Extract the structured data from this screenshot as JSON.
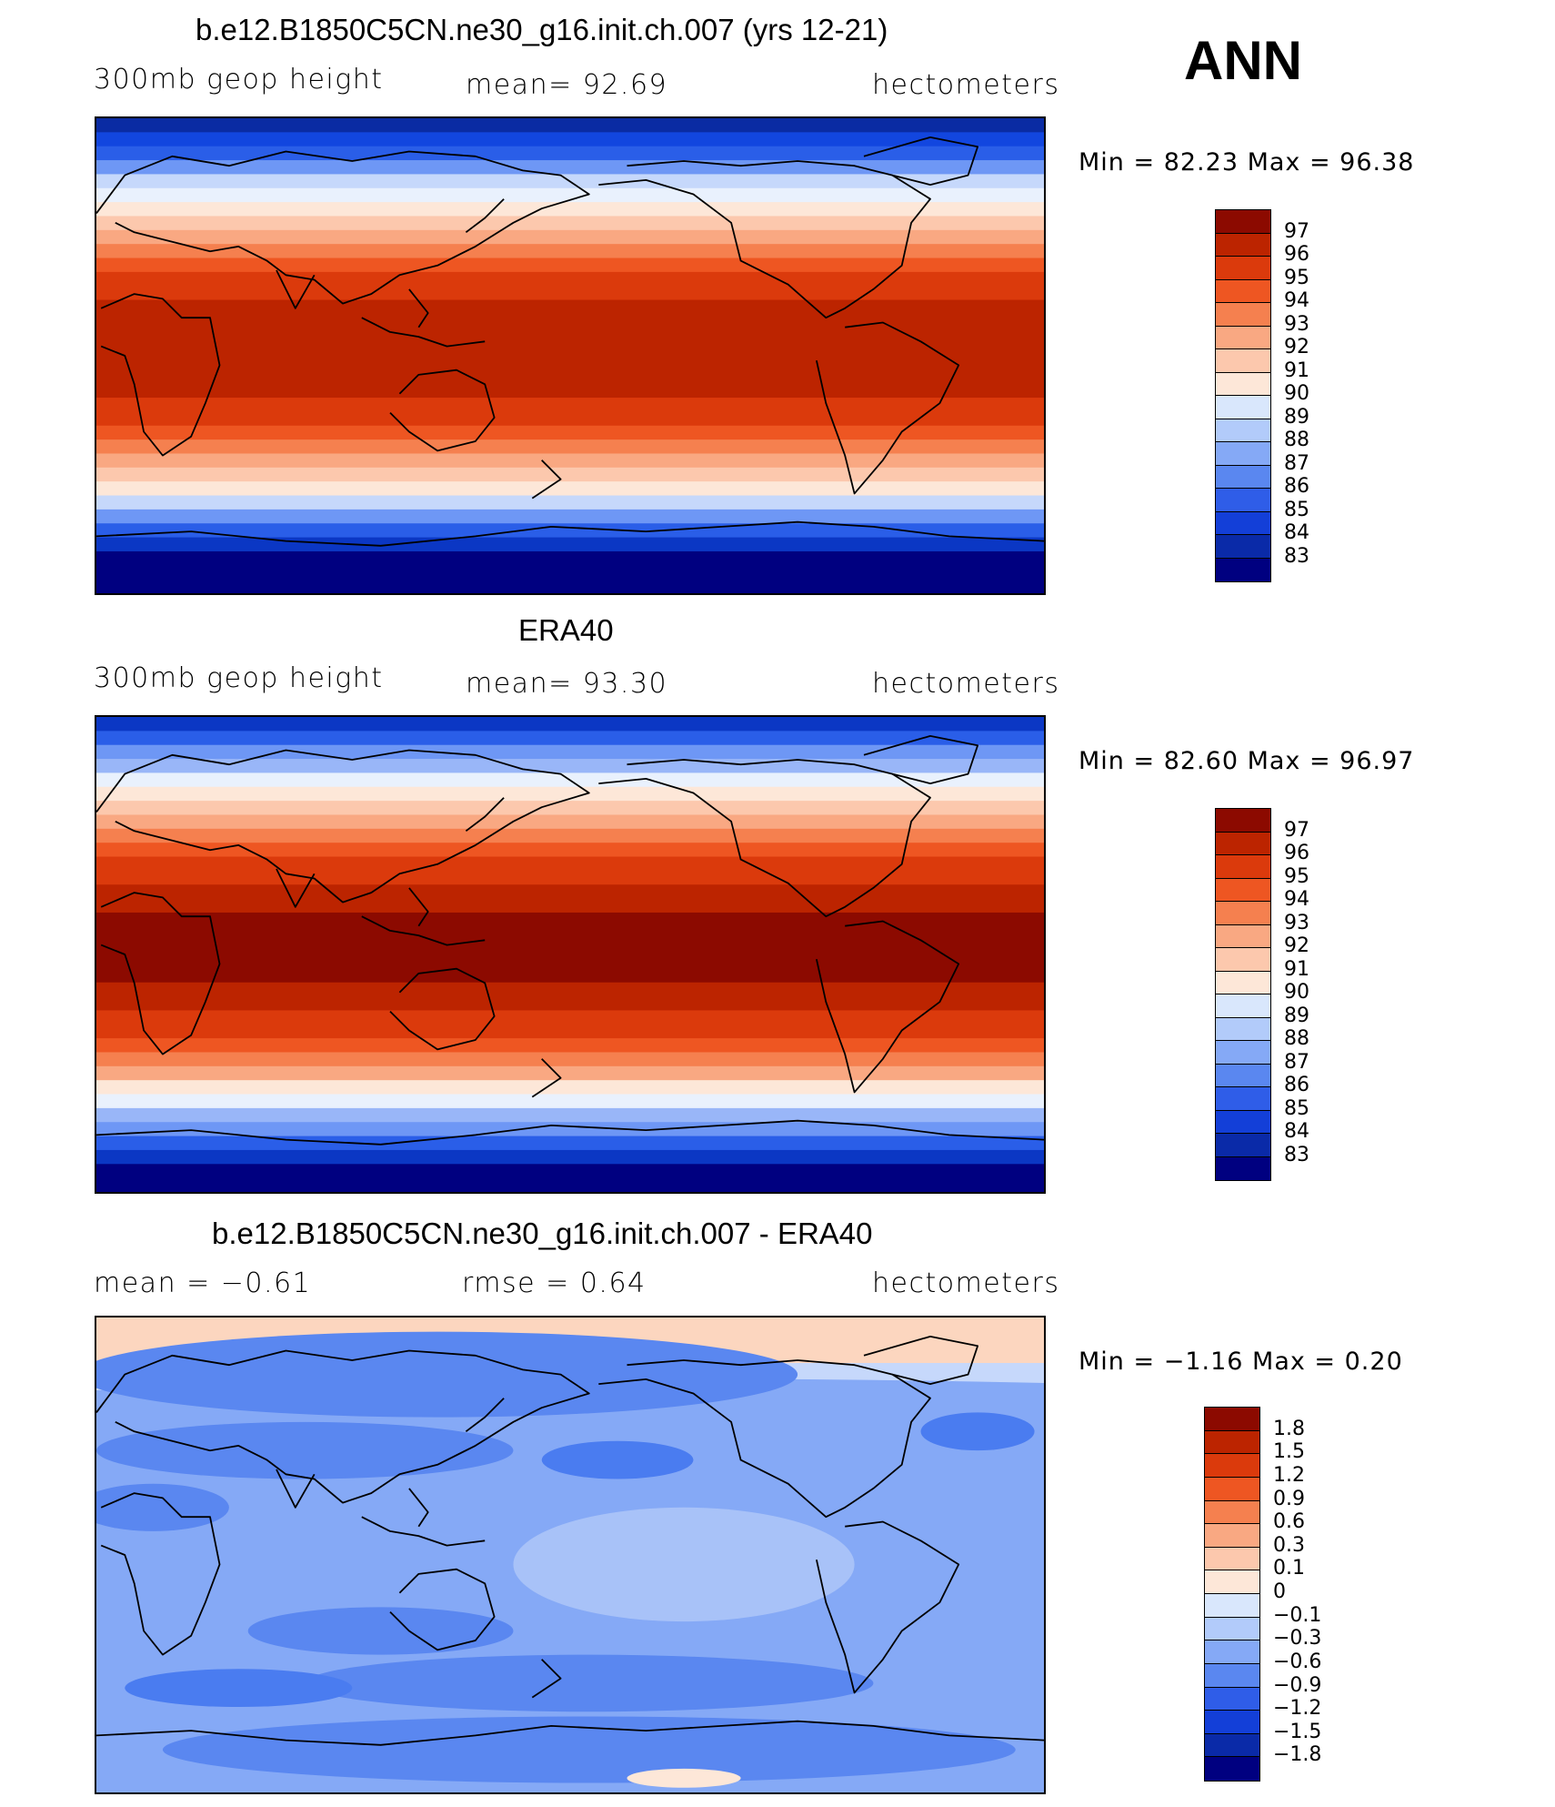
{
  "header": {
    "season": "ANN"
  },
  "panels": [
    {
      "id": "model",
      "title": "b.e12.B1850C5CN.ne30_g16.init.ch.007 (yrs 12-21)",
      "left": "300mb  geop  height",
      "center": "mean=   92.69",
      "right": "hectometers",
      "minmax": "Min  =    82.23  Max  =    96.38",
      "legend": [
        "97",
        "96",
        "95",
        "94",
        "93",
        "92",
        "91",
        "90",
        "89",
        "88",
        "87",
        "86",
        "85",
        "84",
        "83"
      ]
    },
    {
      "id": "obs",
      "title": "ERA40",
      "left": "300mb  geop  height",
      "center": "mean=   93.30",
      "right": "hectometers",
      "minmax": "Min  =    82.60  Max  =    96.97",
      "legend": [
        "97",
        "96",
        "95",
        "94",
        "93",
        "92",
        "91",
        "90",
        "89",
        "88",
        "87",
        "86",
        "85",
        "84",
        "83"
      ]
    },
    {
      "id": "diff",
      "title": "b.e12.B1850C5CN.ne30_g16.init.ch.007 - ERA40",
      "left": "mean  =    −0.61",
      "center": "rmse  =     0.64",
      "right": "hectometers",
      "minmax": "Min  =    −1.16  Max  =     0.20",
      "legend": [
        "1.8",
        "1.5",
        "1.2",
        "0.9",
        "0.6",
        "0.3",
        "0.1",
        "0",
        "−0.1",
        "−0.3",
        "−0.6",
        "−0.9",
        "−1.2",
        "−1.5",
        "−1.8"
      ]
    }
  ],
  "colors": {
    "field_scale": [
      "#000080",
      "#0a2ba3",
      "#0b37c4",
      "#1246df",
      "#2a5ee8",
      "#4a7cf0",
      "#6e97f5",
      "#99b6f8",
      "#c6d8fb",
      "#e9f1fd",
      "#fde7d8",
      "#fcc8ad",
      "#f9a882",
      "#f5804f",
      "#ee5622",
      "#db3a0c",
      "#bc2400",
      "#8c0a00"
    ],
    "legend_colors": [
      "#8c0a00",
      "#bc2400",
      "#db3a0c",
      "#ee5622",
      "#f5804f",
      "#f9a882",
      "#fcc8ad",
      "#fde7d8",
      "#d9e7fc",
      "#b2cbfa",
      "#85a9f6",
      "#5a87f0",
      "#2f5de8",
      "#133fd8",
      "#0a2aa8",
      "#000080"
    ],
    "coastline": "#000000"
  }
}
